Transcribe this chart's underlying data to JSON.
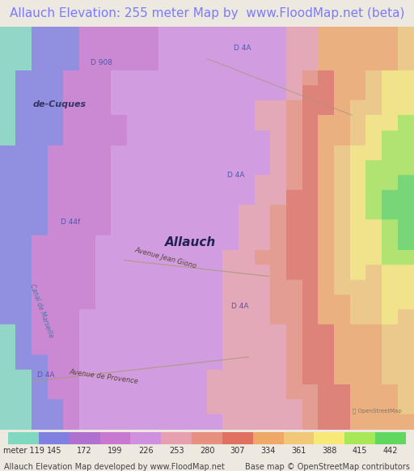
{
  "title": "Allauch Elevation: 255 meter Map by  www.FloodMap.net (beta)",
  "title_color": "#7B7BFF",
  "title_fontsize": 11,
  "background_color": "#EDE8E0",
  "colorbar_values": [
    119,
    145,
    172,
    199,
    226,
    253,
    280,
    307,
    334,
    361,
    388,
    415,
    442
  ],
  "colorbar_colors": [
    "#80D8C0",
    "#8080E0",
    "#B070D0",
    "#C878D0",
    "#D090E0",
    "#E8A0B0",
    "#E89080",
    "#E07060",
    "#F0A868",
    "#F0C878",
    "#F8E878",
    "#A8E858",
    "#60D860"
  ],
  "footer_left": "Allauch Elevation Map developed by www.FloodMap.net",
  "footer_right": "Base map © OpenStreetMap contributors",
  "footer_fontsize": 7,
  "label_fontsize": 7,
  "fig_width": 5.12,
  "fig_height": 5.82,
  "dpi": 100
}
